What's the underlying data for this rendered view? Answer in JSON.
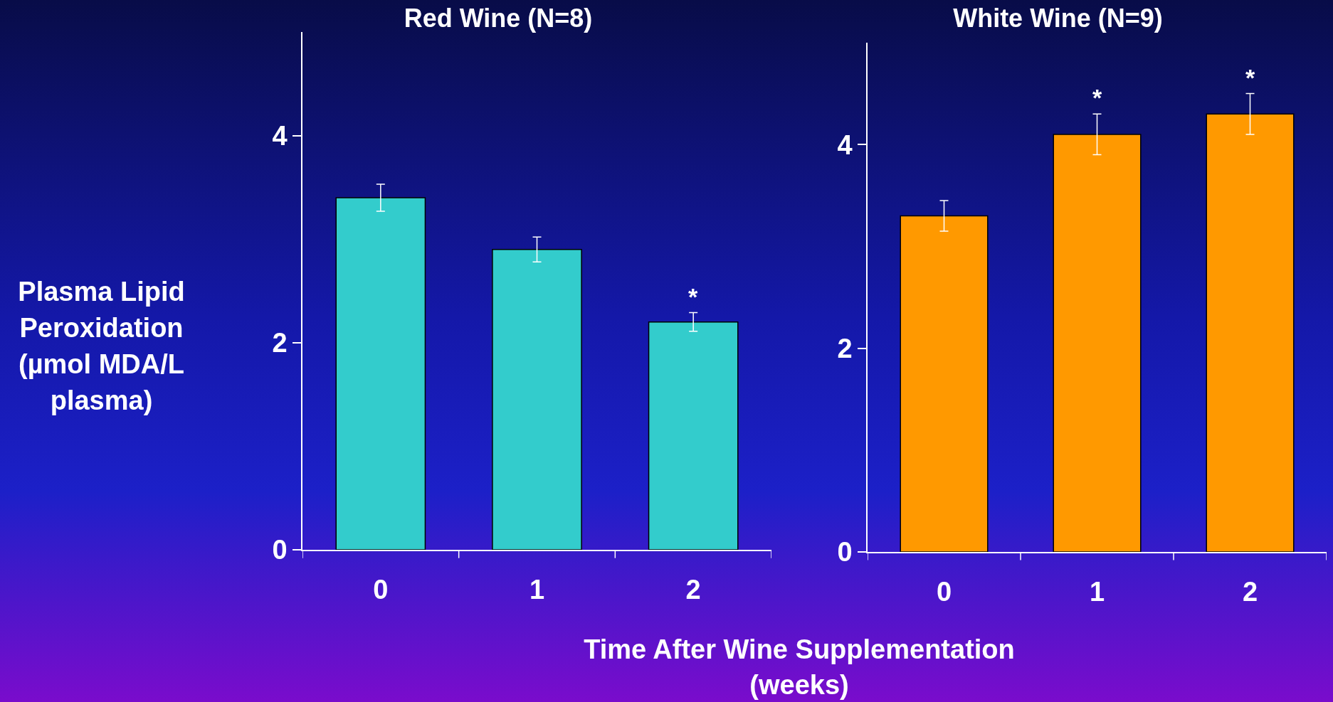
{
  "chart_data": [
    {
      "type": "bar",
      "title": "Red Wine (N=8)",
      "ylabel": "Plasma Lipid Peroxidation (µmol MDA/L plasma)",
      "xlabel": "Time After Wine Supplementation (weeks)",
      "categories": [
        "0",
        "1",
        "2"
      ],
      "values": [
        3.4,
        2.9,
        2.2
      ],
      "errors": [
        0.13,
        0.12,
        0.09
      ],
      "color": "#33cccc",
      "ylim": [
        0,
        5
      ],
      "yticks": [
        0,
        2,
        4
      ],
      "grid": false,
      "annotations": [
        {
          "text": "*",
          "x": "2",
          "y": 2.2
        }
      ]
    },
    {
      "type": "bar",
      "title": "White Wine (N=9)",
      "categories": [
        "0",
        "1",
        "2"
      ],
      "values": [
        3.3,
        4.1,
        4.3
      ],
      "errors": [
        0.15,
        0.2,
        0.2
      ],
      "color": "#ff9900",
      "ylim": [
        0,
        5
      ],
      "yticks": [
        0,
        2,
        4
      ],
      "grid": false,
      "annotations": [
        {
          "text": "*",
          "x": "1",
          "y": 4.1
        },
        {
          "text": "*",
          "x": "2",
          "y": 4.3
        }
      ]
    }
  ]
}
